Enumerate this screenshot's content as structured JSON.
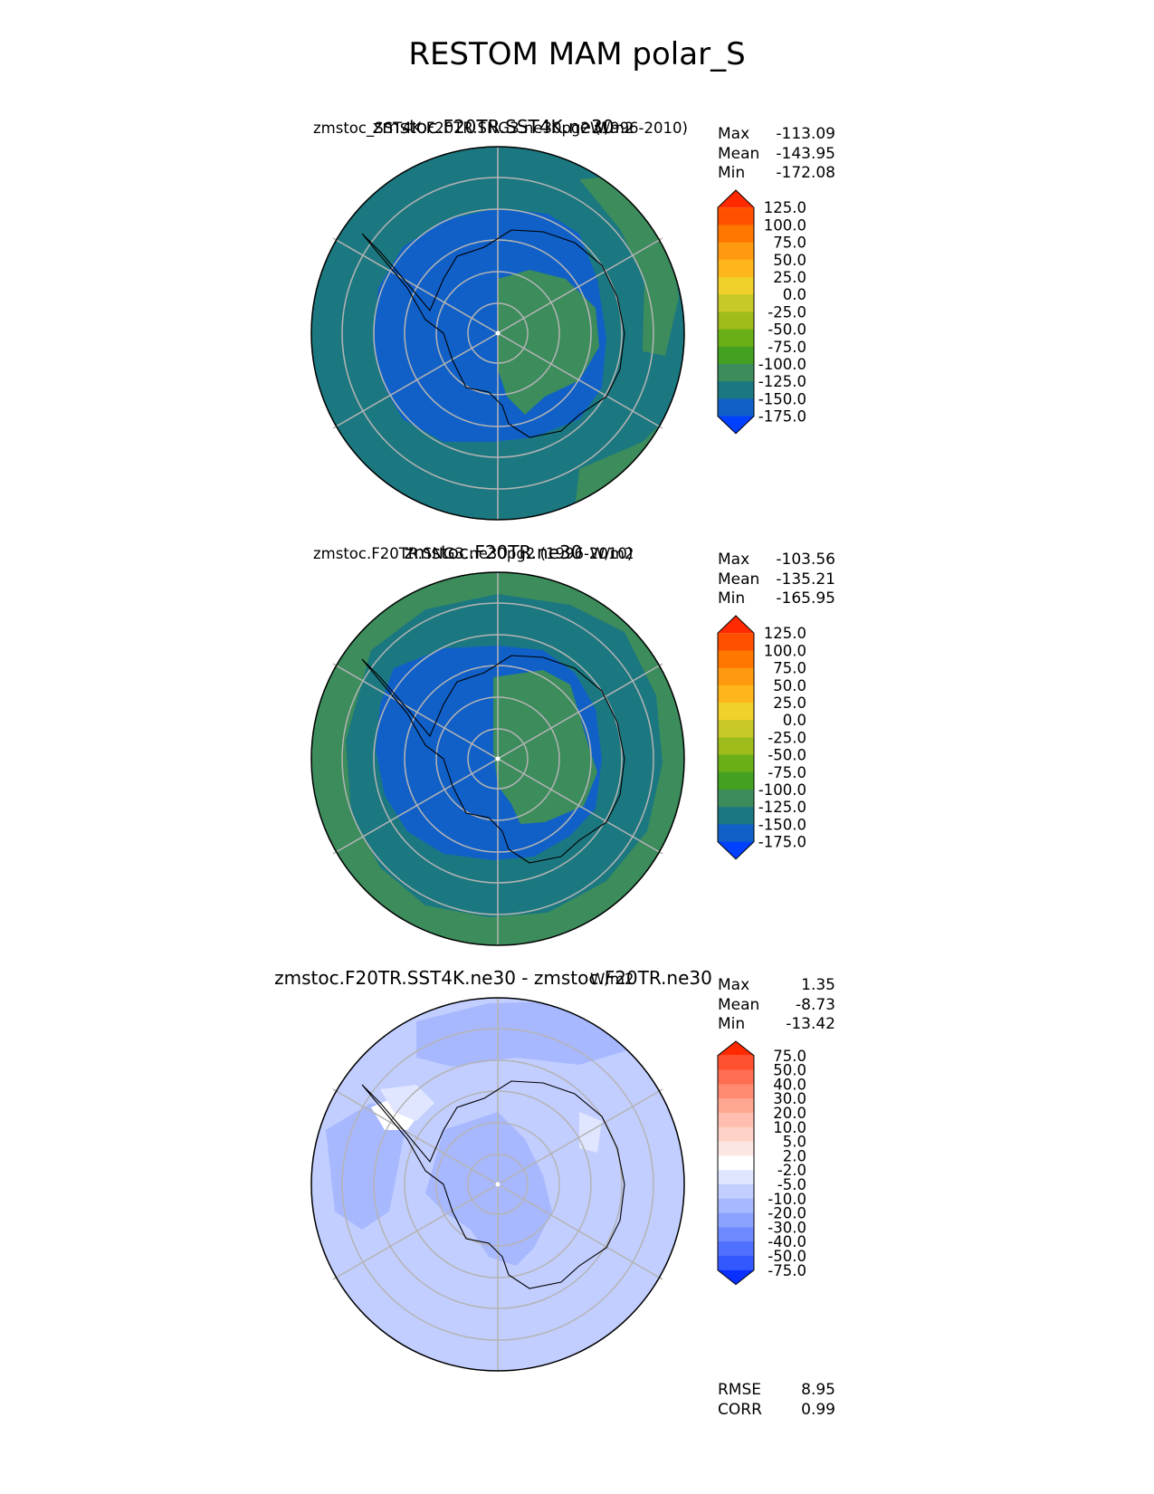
{
  "title": "RESTOM MAM polar_S",
  "panels": [
    {
      "name": "test",
      "title_center": "zmstoc.F20TR.SST4K.ne30",
      "title_left": "zmstoc_SST4K.F20TR.SNG3.ne30pg2 (1996-2010)",
      "title_right": "W/m2",
      "stats": {
        "max_label": "Max",
        "max": "-113.09",
        "mean_label": "Mean",
        "mean": "-143.95",
        "min_label": "Min",
        "min": "-172.08"
      },
      "colorbar": "abs"
    },
    {
      "name": "reference",
      "title_center": "zmstoc.F20TR.ne30",
      "title_left": "zmstoc.F20TR.SNG3.ne30pg2 (1996-2010)",
      "title_right": "W/m2",
      "stats": {
        "max_label": "Max",
        "max": "-103.56",
        "mean_label": "Mean",
        "mean": "-135.21",
        "min_label": "Min",
        "min": "-165.95"
      },
      "colorbar": "abs"
    },
    {
      "name": "difference",
      "title_center": "zmstoc.F20TR.SST4K.ne30 - zmstoc.F20TR.ne30",
      "title_left": "",
      "title_right": "W/m2",
      "stats": {
        "max_label": "Max",
        "max": "1.35",
        "mean_label": "Mean",
        "mean": "-8.73",
        "min_label": "Min",
        "min": "-13.42"
      },
      "colorbar": "diff"
    }
  ],
  "metrics": {
    "rmse_label": "RMSE",
    "rmse": "8.95",
    "corr_label": "CORR",
    "corr": "0.99"
  },
  "chart_data": {
    "type": "heatmap",
    "projection": "south polar stereographic",
    "colorbars": {
      "abs": {
        "ticks": [
          "125.0",
          "100.0",
          "75.0",
          "50.0",
          "25.0",
          "0.0",
          "-25.0",
          "-50.0",
          "-75.0",
          "-100.0",
          "-125.0",
          "-150.0",
          "-175.0"
        ],
        "colors": [
          "#ff2a00",
          "#ff5000",
          "#ff7600",
          "#ff9a10",
          "#ffb61a",
          "#f0d02a",
          "#c8c828",
          "#9ebc1c",
          "#6aae18",
          "#44a020",
          "#3c8c5c",
          "#1c7880",
          "#1060c8",
          "#0040ff"
        ]
      },
      "diff": {
        "ticks": [
          "75.0",
          "50.0",
          "40.0",
          "30.0",
          "20.0",
          "10.0",
          "5.0",
          "2.0",
          "-2.0",
          "-5.0",
          "-10.0",
          "-20.0",
          "-30.0",
          "-40.0",
          "-50.0",
          "-75.0"
        ],
        "colors": [
          "#ff2a00",
          "#ff5030",
          "#ff6e50",
          "#ff8a70",
          "#ffa690",
          "#ffbeb0",
          "#ffd2c8",
          "#fbe6e2",
          "#ffffff",
          "#e0e6ff",
          "#c2ceff",
          "#a8b8ff",
          "#8ca2ff",
          "#6e8aff",
          "#5070ff",
          "#3458ff",
          "#0a30ff"
        ]
      }
    },
    "field_colors": {
      "test": {
        "ocean": "#1c7880",
        "interior": "#1060c8",
        "plateau": "#3c8c5c"
      },
      "reference": {
        "outer": "#3c8c5c",
        "ocean": "#1c7880",
        "interior": "#1060c8",
        "plateau": "#3c8c5c"
      },
      "difference": {
        "base": "#c2ceff",
        "darker": "#a8b8ff",
        "light": "#e0e6ff",
        "white": "#ffffff"
      }
    }
  }
}
